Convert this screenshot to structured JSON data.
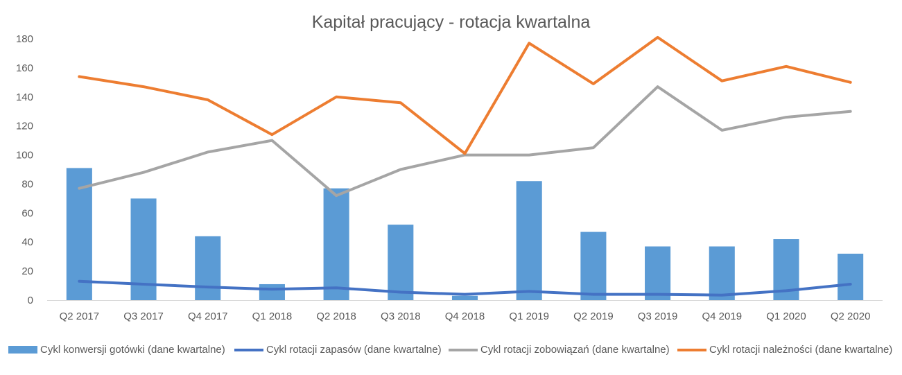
{
  "chart_data": {
    "type": "bar",
    "title": "Kapitał pracujący - rotacja kwartalna",
    "categories": [
      "Q2 2017",
      "Q3 2017",
      "Q4 2017",
      "Q1 2018",
      "Q2 2018",
      "Q3 2018",
      "Q4 2018",
      "Q1 2019",
      "Q2 2019",
      "Q3 2019",
      "Q4 2019",
      "Q1 2020",
      "Q2 2020"
    ],
    "ylim": [
      0,
      180
    ],
    "yticks": [
      0,
      20,
      40,
      60,
      80,
      100,
      120,
      140,
      160,
      180
    ],
    "grid": false,
    "legend_position": "bottom",
    "series": [
      {
        "name": "Cykl konwersji gotówki (dane kwartalne)",
        "type": "bar",
        "color": "#5b9bd5",
        "values": [
          91,
          70,
          44,
          11,
          77,
          52,
          3,
          82,
          47,
          37,
          37,
          42,
          32
        ]
      },
      {
        "name": "Cykl rotacji zapasów (dane kwartalne)",
        "type": "line",
        "color": "#4472c4",
        "values": [
          13,
          11,
          9,
          7.5,
          8.5,
          5.5,
          4,
          6,
          4,
          4,
          3.5,
          6.5,
          11
        ]
      },
      {
        "name": "Cykl rotacji zobowiązań (dane kwartalne)",
        "type": "line",
        "color": "#a5a5a5",
        "values": [
          77,
          88,
          102,
          110,
          72,
          90,
          100,
          100,
          105,
          147,
          117,
          126,
          130
        ]
      },
      {
        "name": "Cykl rotacji należności (dane kwartalne)",
        "type": "line",
        "color": "#ed7d31",
        "values": [
          154,
          147,
          138,
          114,
          140,
          136,
          101,
          177,
          149,
          181,
          151,
          161,
          150
        ]
      }
    ]
  }
}
